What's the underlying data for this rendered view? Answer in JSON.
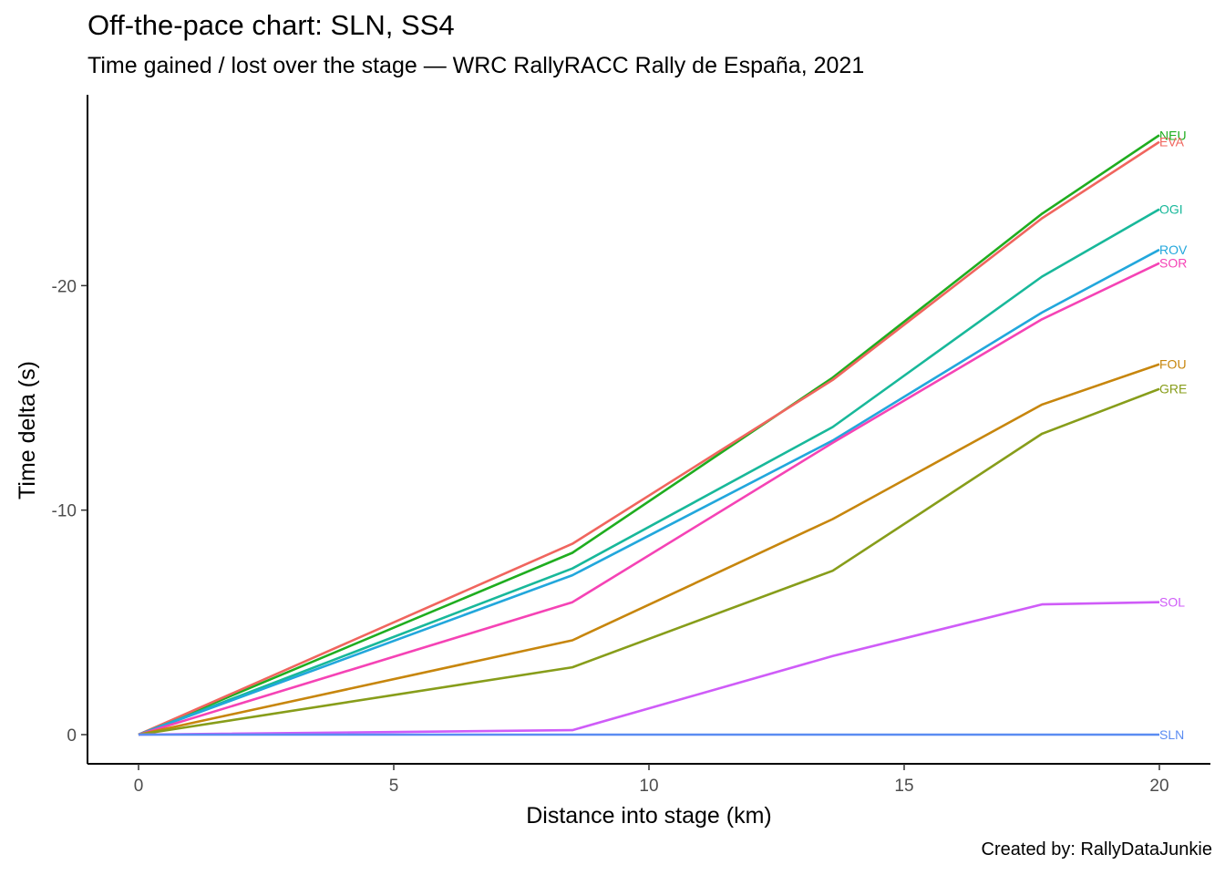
{
  "chart_data": {
    "type": "line",
    "title": "Off-the-pace chart: SLN, SS4",
    "subtitle": "Time gained / lost over the stage — WRC RallyRACC Rally de España, 2021",
    "caption": "Created by: RallyDataJunkie",
    "xlabel": "Distance into stage (km)",
    "ylabel": "Time delta (s)",
    "xlim": [
      -1,
      21
    ],
    "ylim": [
      1.3,
      -28.5
    ],
    "y_axis_reversed": true,
    "x_ticks": [
      0,
      5,
      10,
      15,
      20
    ],
    "y_ticks": [
      0,
      -10,
      -20
    ],
    "grid": false,
    "legend": "none (direct labels at line ends)",
    "x": [
      0,
      8.5,
      13.6,
      17.7,
      20
    ],
    "series": [
      {
        "name": "NEU",
        "color": "#1fad1f",
        "values": [
          0,
          -8.1,
          -15.9,
          -23.2,
          -26.7
        ]
      },
      {
        "name": "EVA",
        "color": "#f0655e",
        "values": [
          0,
          -8.5,
          -15.8,
          -23.0,
          -26.4
        ]
      },
      {
        "name": "OGI",
        "color": "#18b89a",
        "values": [
          0,
          -7.4,
          -13.7,
          -20.4,
          -23.4
        ]
      },
      {
        "name": "ROV",
        "color": "#22a7dc",
        "values": [
          0,
          -7.1,
          -13.1,
          -18.8,
          -21.6
        ]
      },
      {
        "name": "SOR",
        "color": "#f543b5",
        "values": [
          0,
          -5.9,
          -13.0,
          -18.5,
          -21.0
        ]
      },
      {
        "name": "FOU",
        "color": "#c7860d",
        "values": [
          0,
          -4.2,
          -9.6,
          -14.7,
          -16.5
        ]
      },
      {
        "name": "GRE",
        "color": "#879d1a",
        "values": [
          0,
          -3.0,
          -7.3,
          -13.4,
          -15.4
        ]
      },
      {
        "name": "SOL",
        "color": "#cf5cf8",
        "values": [
          0,
          -0.2,
          -3.5,
          -5.8,
          -5.9
        ]
      },
      {
        "name": "SLN",
        "color": "#5b8cf2",
        "values": [
          0,
          0,
          0,
          0,
          0
        ]
      }
    ]
  }
}
